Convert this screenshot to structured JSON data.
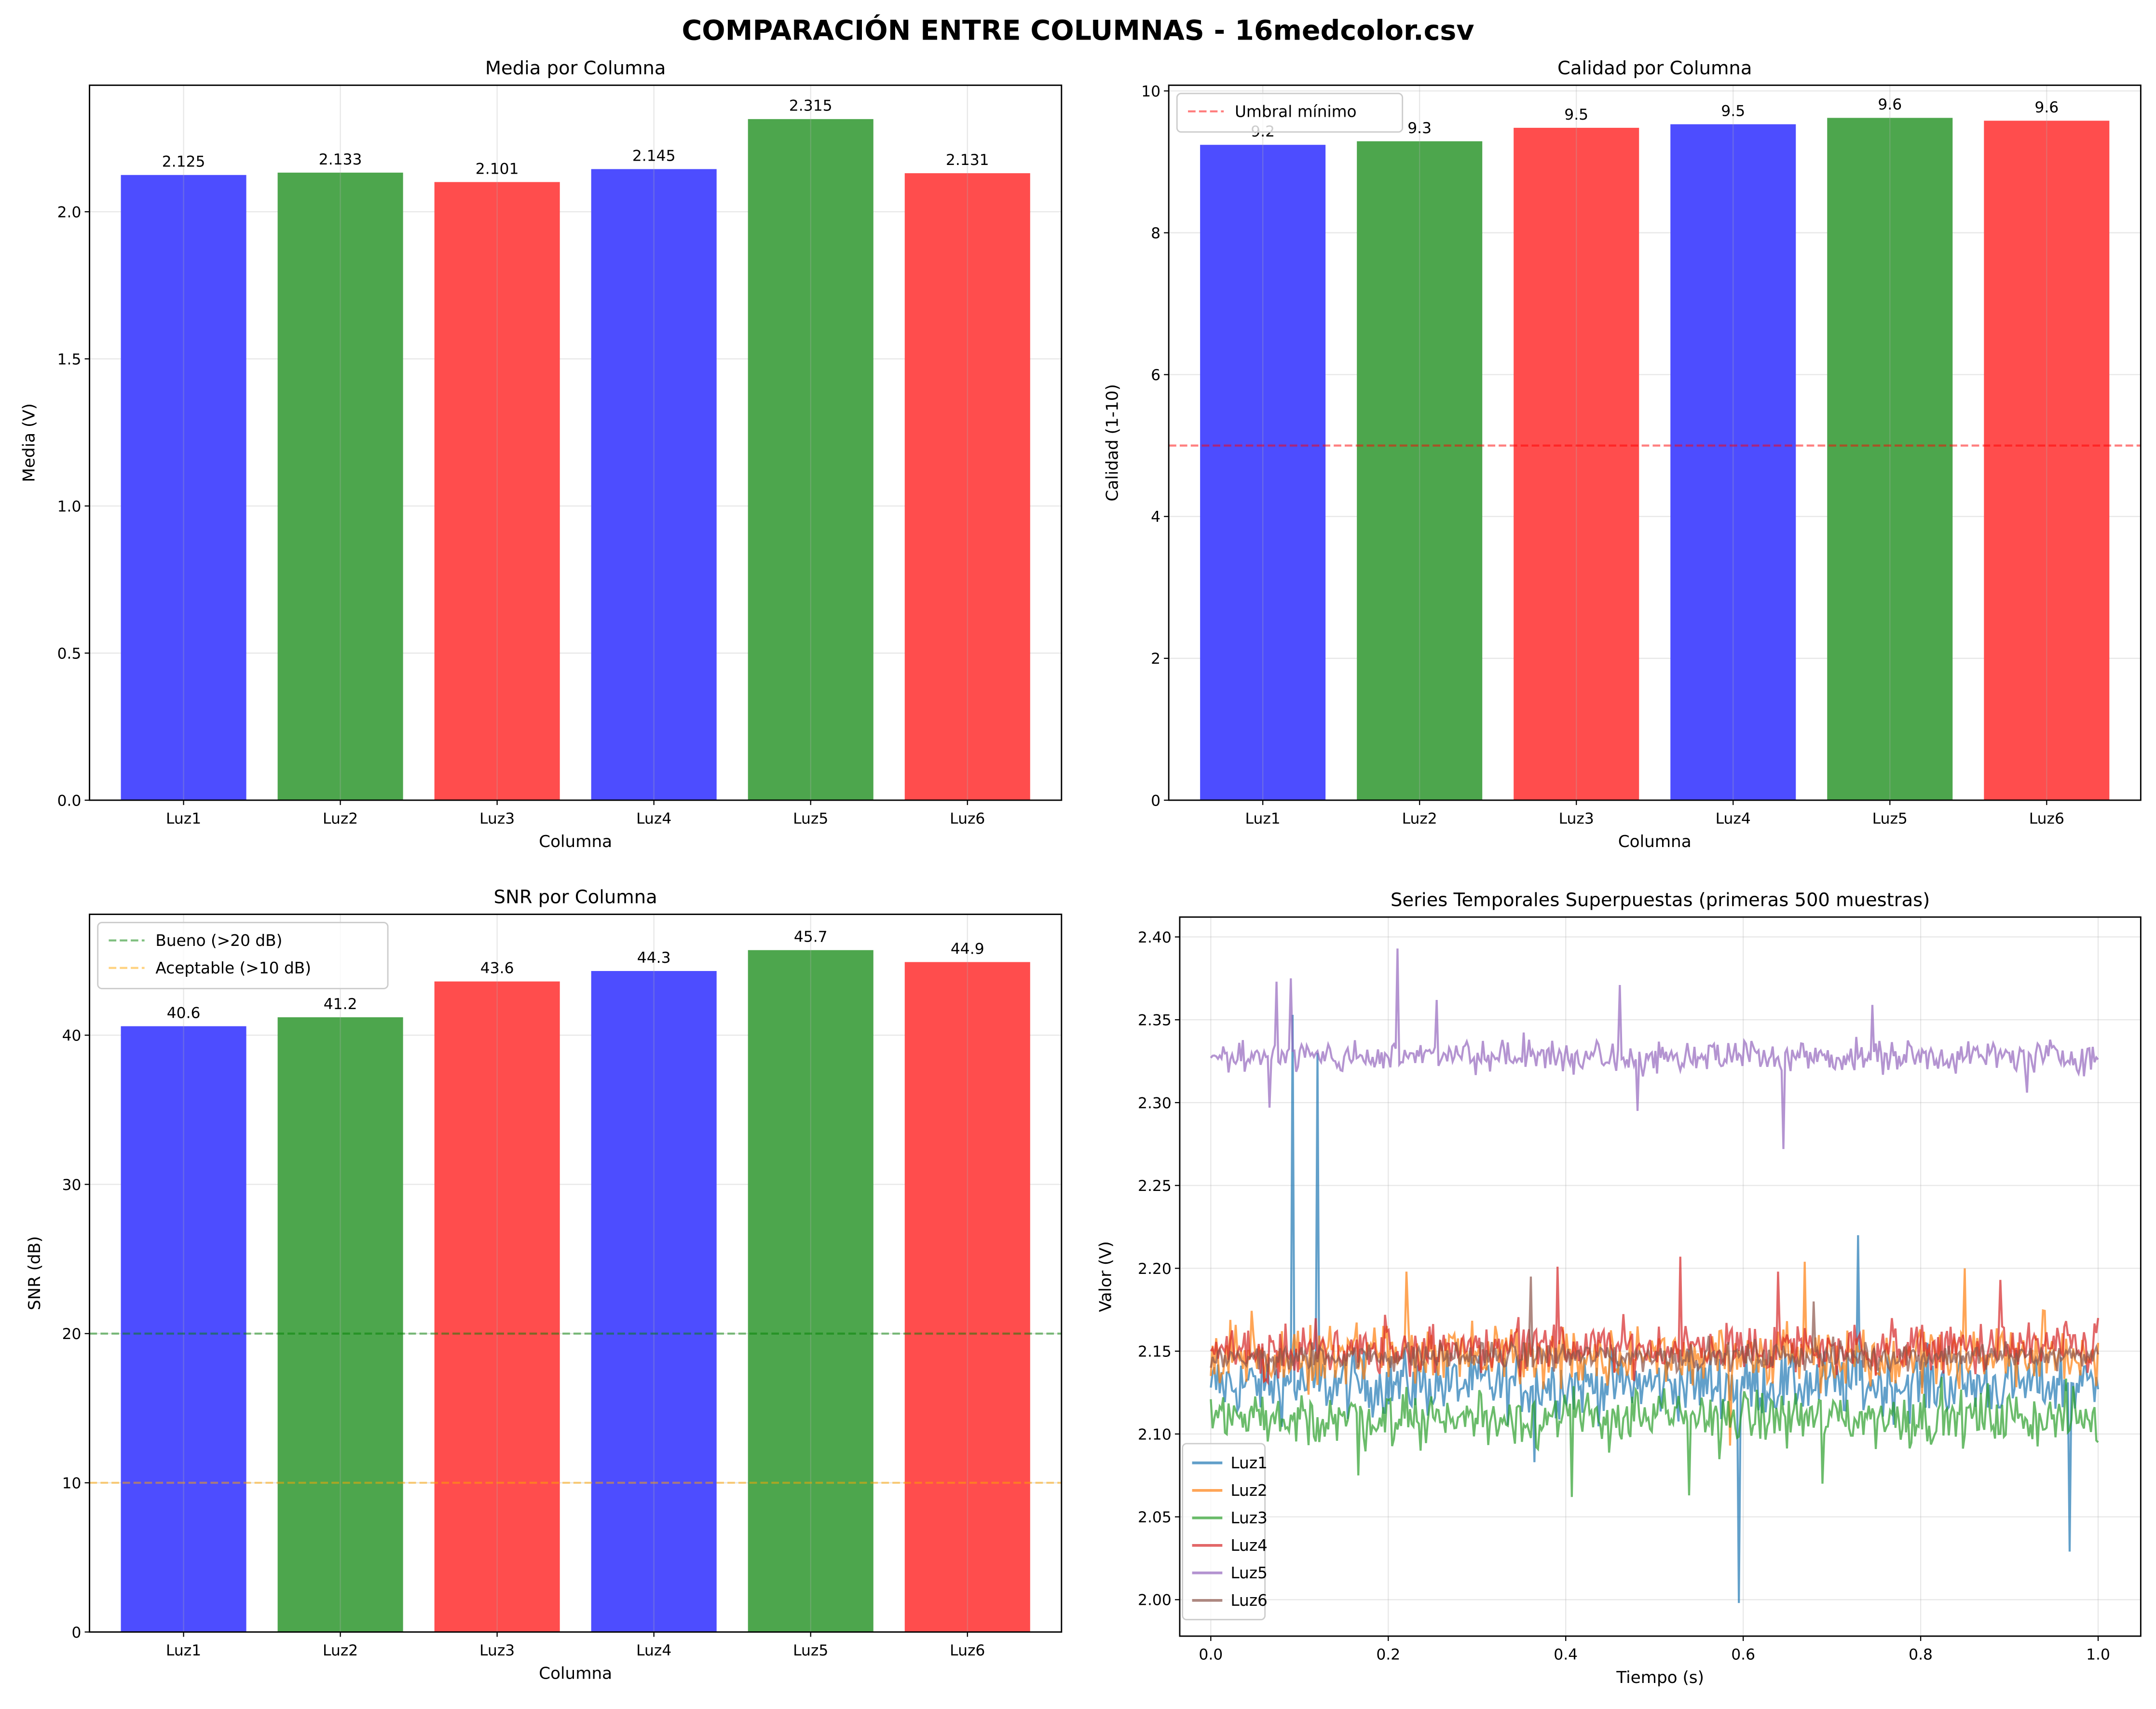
{
  "figure_title": "COMPARACIÓN ENTRE COLUMNAS - 16medcolor.csv",
  "colors": {
    "blue": "#4d4dff",
    "green": "#4da64d",
    "red": "#ff4d4d"
  },
  "chart_data": [
    {
      "type": "bar",
      "title": "Media por Columna",
      "xlabel": "Columna",
      "ylabel": "Media (V)",
      "categories": [
        "Luz1",
        "Luz2",
        "Luz3",
        "Luz4",
        "Luz5",
        "Luz6"
      ],
      "values": [
        2.125,
        2.133,
        2.101,
        2.145,
        2.315,
        2.131
      ],
      "value_labels": [
        "2.125",
        "2.133",
        "2.101",
        "2.145",
        "2.315",
        "2.131"
      ],
      "bar_colors": [
        "#4d4dff",
        "#4da64d",
        "#ff4d4d",
        "#4d4dff",
        "#4da64d",
        "#ff4d4d"
      ],
      "ylim": [
        0,
        2.43
      ],
      "yticks": [
        0.0,
        0.5,
        1.0,
        1.5,
        2.0
      ],
      "ytick_labels": [
        "0.0",
        "0.5",
        "1.0",
        "1.5",
        "2.0"
      ],
      "grid": true
    },
    {
      "type": "bar",
      "title": "Calidad por Columna",
      "xlabel": "Columna",
      "ylabel": "Calidad (1-10)",
      "categories": [
        "Luz1",
        "Luz2",
        "Luz3",
        "Luz4",
        "Luz5",
        "Luz6"
      ],
      "values": [
        9.24,
        9.29,
        9.48,
        9.53,
        9.62,
        9.58
      ],
      "value_labels": [
        "9.2",
        "9.3",
        "9.5",
        "9.5",
        "9.6",
        "9.6"
      ],
      "bar_colors": [
        "#4d4dff",
        "#4da64d",
        "#ff4d4d",
        "#4d4dff",
        "#4da64d",
        "#ff4d4d"
      ],
      "ylim": [
        0,
        10.08
      ],
      "yticks": [
        0,
        2,
        4,
        6,
        8,
        10
      ],
      "ytick_labels": [
        "0",
        "2",
        "4",
        "6",
        "8",
        "10"
      ],
      "hlines": [
        {
          "y": 5,
          "color": "#ff0000",
          "label": "Umbral mínimo"
        }
      ],
      "legend": "top-left",
      "grid": true
    },
    {
      "type": "bar",
      "title": "SNR por Columna",
      "xlabel": "Columna",
      "ylabel": "SNR (dB)",
      "categories": [
        "Luz1",
        "Luz2",
        "Luz3",
        "Luz4",
        "Luz5",
        "Luz6"
      ],
      "values": [
        40.6,
        41.2,
        43.6,
        44.3,
        45.7,
        44.9
      ],
      "value_labels": [
        "40.6",
        "41.2",
        "43.6",
        "44.3",
        "45.7",
        "44.9"
      ],
      "bar_colors": [
        "#4d4dff",
        "#4da64d",
        "#ff4d4d",
        "#4d4dff",
        "#4da64d",
        "#ff4d4d"
      ],
      "ylim": [
        0,
        48.1
      ],
      "yticks": [
        0,
        10,
        20,
        30,
        40
      ],
      "ytick_labels": [
        "0",
        "10",
        "20",
        "30",
        "40"
      ],
      "hlines": [
        {
          "y": 20,
          "color": "#008000",
          "label": "Bueno (>20 dB)"
        },
        {
          "y": 10,
          "color": "#ffa500",
          "label": "Aceptable (>10 dB)"
        }
      ],
      "legend": "top-left",
      "grid": true
    },
    {
      "type": "line",
      "title": "Series Temporales Superpuestas (primeras 500 muestras)",
      "xlabel": "Tiempo (s)",
      "ylabel": "Valor (V)",
      "samples": 500,
      "xlim": [
        -0.035,
        1.048
      ],
      "ylim": [
        1.978,
        2.412
      ],
      "xticks": [
        0.0,
        0.2,
        0.4,
        0.6,
        0.8,
        1.0
      ],
      "xtick_labels": [
        "0.0",
        "0.2",
        "0.4",
        "0.6",
        "0.8",
        "1.0"
      ],
      "yticks": [
        2.0,
        2.05,
        2.1,
        2.15,
        2.2,
        2.25,
        2.3,
        2.35,
        2.4
      ],
      "ytick_labels": [
        "2.00",
        "2.05",
        "2.10",
        "2.15",
        "2.20",
        "2.25",
        "2.30",
        "2.35",
        "2.40"
      ],
      "legend": "bottom-left",
      "grid": true,
      "series": [
        {
          "name": "Luz1",
          "color": "#1f77b4",
          "mean": 2.13,
          "noise": 0.014,
          "spikes": [
            [
              0.0,
              2.128
            ],
            [
              0.093,
              2.353
            ],
            [
              0.12,
              2.33
            ],
            [
              0.365,
              2.083
            ],
            [
              0.595,
              1.998
            ],
            [
              0.73,
              2.22
            ],
            [
              0.967,
              2.029
            ],
            [
              1.0,
              2.127
            ]
          ]
        },
        {
          "name": "Luz2",
          "color": "#ff7f0e",
          "mean": 2.148,
          "noise": 0.014,
          "spikes": [
            [
              0.0,
              2.135
            ],
            [
              0.22,
              2.198
            ],
            [
              0.67,
              2.204
            ],
            [
              0.85,
              2.2
            ],
            [
              0.585,
              2.093
            ],
            [
              1.0,
              2.155
            ]
          ]
        },
        {
          "name": "Luz3",
          "color": "#2ca02c",
          "mean": 2.11,
          "noise": 0.012,
          "spikes": [
            [
              0.0,
              2.121
            ],
            [
              0.167,
              2.075
            ],
            [
              0.406,
              2.062
            ],
            [
              0.54,
              2.063
            ],
            [
              0.69,
              2.07
            ],
            [
              1.0,
              2.095
            ]
          ]
        },
        {
          "name": "Luz4",
          "color": "#d62728",
          "mean": 2.152,
          "noise": 0.011,
          "spikes": [
            [
              0.0,
              2.15
            ],
            [
              0.39,
              2.201
            ],
            [
              0.53,
              2.207
            ],
            [
              0.64,
              2.198
            ],
            [
              0.89,
              2.193
            ],
            [
              1.0,
              2.17
            ]
          ]
        },
        {
          "name": "Luz5",
          "color": "#9467bd",
          "mean": 2.328,
          "noise": 0.007,
          "spikes": [
            [
              0.0,
              2.327
            ],
            [
              0.075,
              2.373
            ],
            [
              0.09,
              2.375
            ],
            [
              0.067,
              2.297
            ],
            [
              0.21,
              2.393
            ],
            [
              0.255,
              2.362
            ],
            [
              0.46,
              2.371
            ],
            [
              0.48,
              2.295
            ],
            [
              0.645,
              2.272
            ],
            [
              0.745,
              2.359
            ],
            [
              0.92,
              2.306
            ],
            [
              1.0,
              2.326
            ]
          ]
        },
        {
          "name": "Luz6",
          "color": "#8c564b",
          "mean": 2.147,
          "noise": 0.006,
          "spikes": [
            [
              0.0,
              2.14
            ],
            [
              0.36,
              2.195
            ],
            [
              0.68,
              2.18
            ],
            [
              1.0,
              2.148
            ]
          ]
        }
      ]
    }
  ]
}
